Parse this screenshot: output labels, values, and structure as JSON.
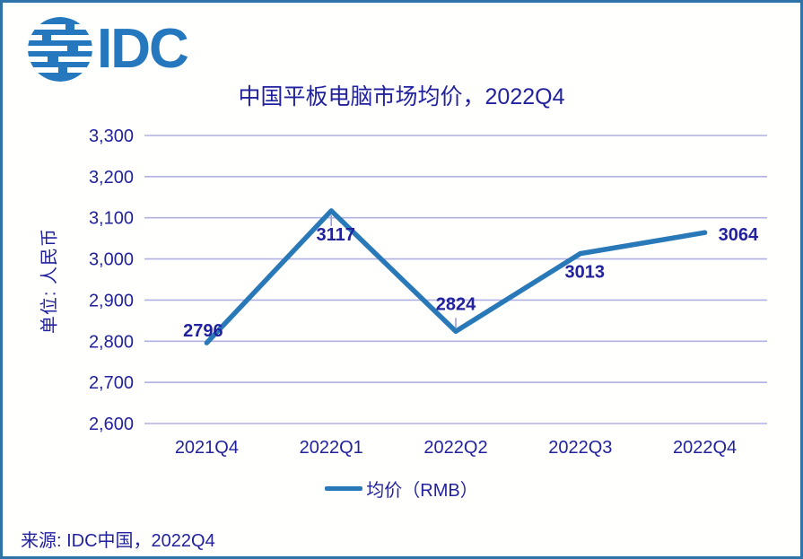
{
  "logo": {
    "text": "IDC",
    "icon": "globe-stripes-icon"
  },
  "title": "中国平板电脑市场均价，2022Q4",
  "y_axis_title": "单位: 人民币",
  "legend": {
    "label": "均价（RMB）"
  },
  "source": "来源: IDC中国，2022Q4",
  "colors": {
    "border": "#2e74a8",
    "logo_blue": "#2577be",
    "text_navy": "#22229e",
    "line_blue": "#2979b9",
    "gridline_lavender": "#b0b0e2",
    "leader_purple": "#9b9be0",
    "background": "#fffffd"
  },
  "chart_data": {
    "type": "line",
    "title": "中国平板电脑市场均价，2022Q4",
    "xlabel": "",
    "ylabel": "单位: 人民币",
    "categories": [
      "2021Q4",
      "2022Q1",
      "2022Q2",
      "2022Q3",
      "2022Q4"
    ],
    "series": [
      {
        "name": "均价（RMB）",
        "values": [
          2796,
          3117,
          2824,
          3013,
          3064
        ]
      }
    ],
    "data_labels": [
      "2796",
      "3117",
      "2824",
      "3013",
      "3064"
    ],
    "ylim": [
      2600,
      3300
    ],
    "ytick_step": 100,
    "ytick_labels": [
      "2,600",
      "2,700",
      "2,800",
      "2,900",
      "3,000",
      "3,100",
      "3,200",
      "3,300"
    ],
    "grid": "horizontal",
    "legend_position": "bottom"
  }
}
